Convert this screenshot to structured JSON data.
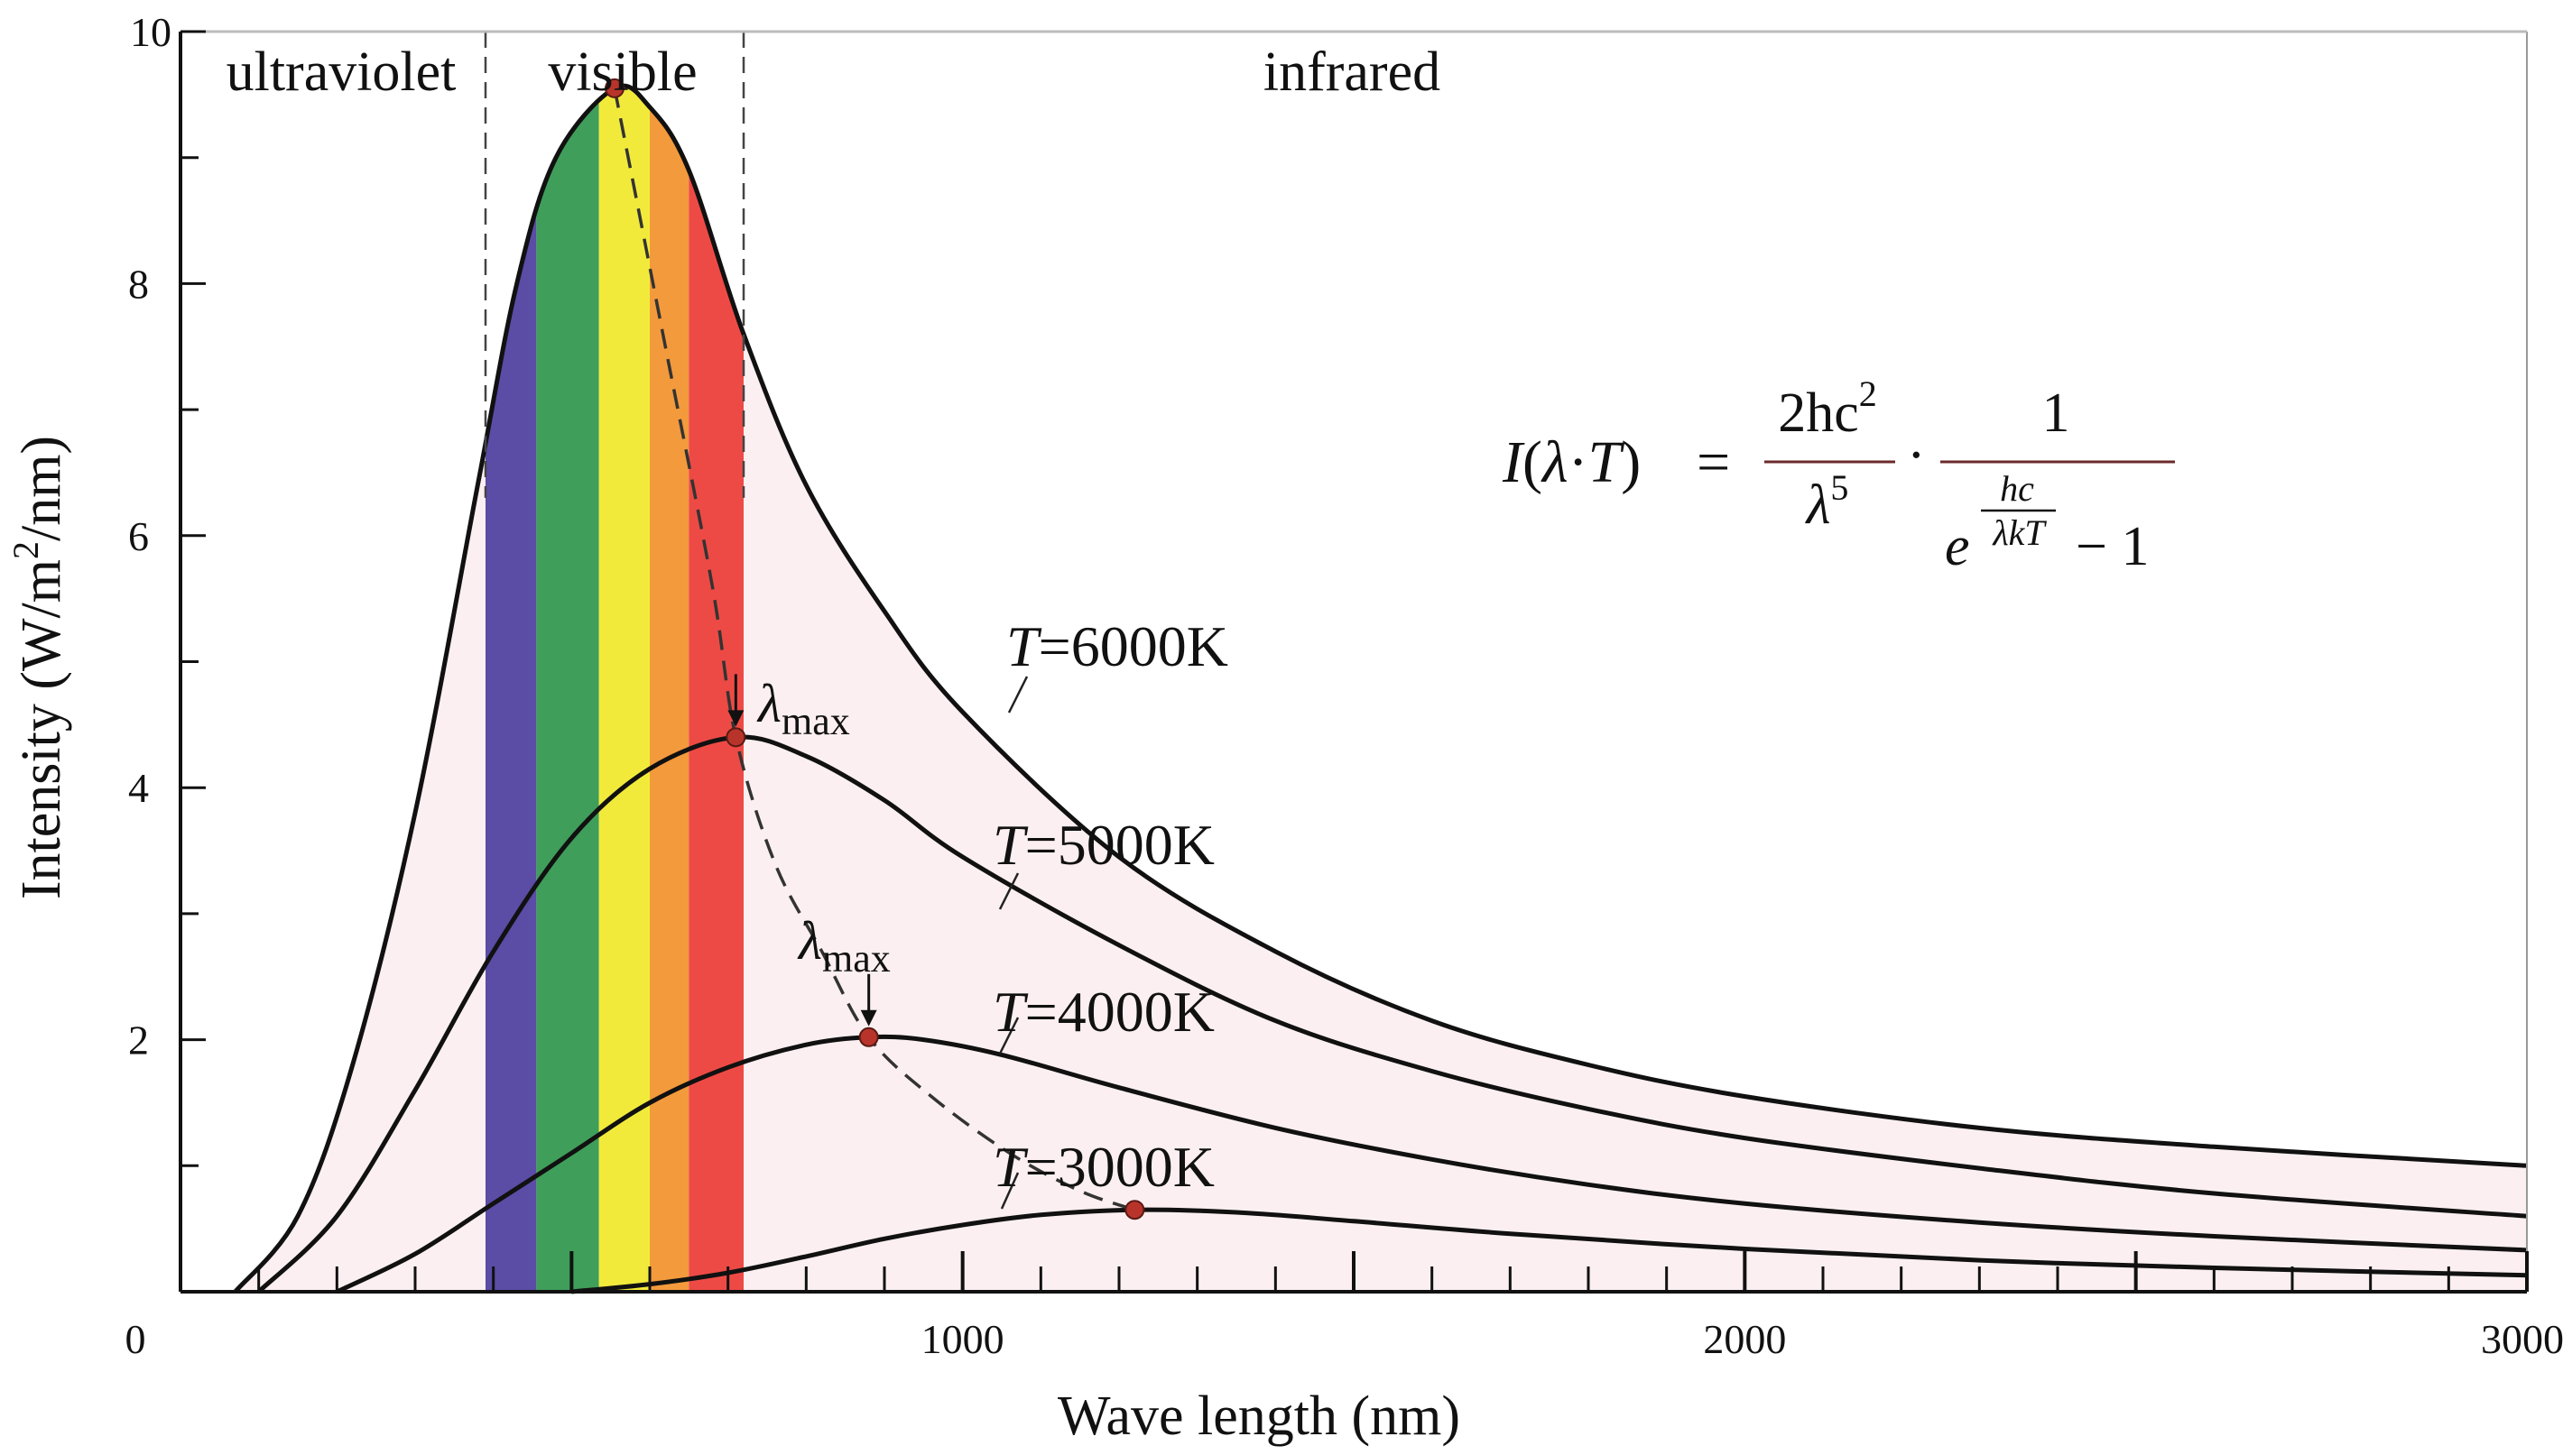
{
  "chart_data": {
    "type": "line",
    "xlabel": "Wave length (nm)",
    "ylabel_main": "Intensity (W/m",
    "ylabel_sup": "2",
    "ylabel_end": "/nm)",
    "xlim": [
      0,
      3000
    ],
    "ylim": [
      0,
      10
    ],
    "x_ticks": [
      {
        "value": 0,
        "label": "0"
      },
      {
        "value": 1000,
        "label": "1000"
      },
      {
        "value": 2000,
        "label": "2000"
      },
      {
        "value": 3000,
        "label": "3000"
      }
    ],
    "y_ticks": [
      {
        "value": 2,
        "label": "2"
      },
      {
        "value": 4,
        "label": "4"
      },
      {
        "value": 6,
        "label": "6"
      },
      {
        "value": 8,
        "label": "8"
      },
      {
        "value": 10,
        "label": "10"
      }
    ],
    "regions": [
      {
        "name": "ultraviolet",
        "label": "ultraviolet",
        "from": 0,
        "to": 390
      },
      {
        "name": "visible",
        "label": "visible",
        "from": 390,
        "to": 720
      },
      {
        "name": "infrared",
        "label": "infrared",
        "from": 720,
        "to": 3000
      }
    ],
    "spectrum_bands": [
      {
        "from": 390,
        "to": 455,
        "color": "#5b4ca6"
      },
      {
        "from": 455,
        "to": 535,
        "color": "#3f9e5a"
      },
      {
        "from": 535,
        "to": 600,
        "color": "#f2ea3b"
      },
      {
        "from": 600,
        "to": 650,
        "color": "#f39a3c"
      },
      {
        "from": 650,
        "to": 720,
        "color": "#ee4a45"
      }
    ],
    "series": [
      {
        "name": "T=6000K",
        "label_italic": "T",
        "label_rest": "=6000K",
        "temperature_K": 6000,
        "peak": {
          "x": 555,
          "y": 9.55
        },
        "points": [
          [
            70,
            0
          ],
          [
            150,
            0.6
          ],
          [
            220,
            1.8
          ],
          [
            300,
            3.8
          ],
          [
            380,
            6.4
          ],
          [
            430,
            8.0
          ],
          [
            480,
            9.0
          ],
          [
            555,
            9.55
          ],
          [
            600,
            9.4
          ],
          [
            650,
            8.9
          ],
          [
            720,
            7.6
          ],
          [
            800,
            6.4
          ],
          [
            900,
            5.4
          ],
          [
            1000,
            4.6
          ],
          [
            1200,
            3.45
          ],
          [
            1400,
            2.7
          ],
          [
            1600,
            2.15
          ],
          [
            1800,
            1.8
          ],
          [
            2000,
            1.55
          ],
          [
            2300,
            1.3
          ],
          [
            2600,
            1.15
          ],
          [
            3000,
            1.0
          ]
        ],
        "label_pos": {
          "x": 1060,
          "y": 5.2
        }
      },
      {
        "name": "T=5000K",
        "label_italic": "T",
        "label_rest": "=5000K",
        "temperature_K": 5000,
        "peak": {
          "x": 710,
          "y": 4.4
        },
        "points": [
          [
            100,
            0
          ],
          [
            200,
            0.6
          ],
          [
            300,
            1.6
          ],
          [
            400,
            2.7
          ],
          [
            500,
            3.6
          ],
          [
            600,
            4.15
          ],
          [
            710,
            4.4
          ],
          [
            800,
            4.25
          ],
          [
            900,
            3.9
          ],
          [
            1000,
            3.45
          ],
          [
            1200,
            2.75
          ],
          [
            1400,
            2.15
          ],
          [
            1600,
            1.75
          ],
          [
            1800,
            1.45
          ],
          [
            2000,
            1.22
          ],
          [
            2300,
            0.98
          ],
          [
            2600,
            0.78
          ],
          [
            3000,
            0.6
          ]
        ],
        "label_pos": {
          "x": 1040,
          "y": 3.55
        }
      },
      {
        "name": "T=4000K",
        "label_italic": "T",
        "label_rest": "=4000K",
        "temperature_K": 4000,
        "peak": {
          "x": 880,
          "y": 2.02
        },
        "points": [
          [
            200,
            0
          ],
          [
            300,
            0.3
          ],
          [
            400,
            0.7
          ],
          [
            500,
            1.1
          ],
          [
            600,
            1.5
          ],
          [
            700,
            1.78
          ],
          [
            800,
            1.96
          ],
          [
            880,
            2.02
          ],
          [
            950,
            2.0
          ],
          [
            1050,
            1.88
          ],
          [
            1200,
            1.62
          ],
          [
            1400,
            1.3
          ],
          [
            1600,
            1.05
          ],
          [
            1800,
            0.85
          ],
          [
            2000,
            0.7
          ],
          [
            2300,
            0.55
          ],
          [
            2600,
            0.44
          ],
          [
            3000,
            0.33
          ]
        ],
        "label_pos": {
          "x": 1040,
          "y": 2.2
        }
      },
      {
        "name": "T=3000K",
        "label_italic": "T",
        "label_rest": "=3000K",
        "temperature_K": 3000,
        "peak": {
          "x": 1220,
          "y": 0.65
        },
        "points": [
          [
            500,
            0
          ],
          [
            600,
            0.06
          ],
          [
            700,
            0.15
          ],
          [
            800,
            0.28
          ],
          [
            900,
            0.42
          ],
          [
            1000,
            0.53
          ],
          [
            1100,
            0.61
          ],
          [
            1220,
            0.65
          ],
          [
            1350,
            0.63
          ],
          [
            1500,
            0.56
          ],
          [
            1700,
            0.46
          ],
          [
            2000,
            0.34
          ],
          [
            2300,
            0.25
          ],
          [
            2600,
            0.19
          ],
          [
            3000,
            0.13
          ]
        ],
        "label_pos": {
          "x": 1040,
          "y": 0.95
        }
      }
    ],
    "lambda_max_labels": [
      {
        "label_base": "λ",
        "label_sub": "max",
        "x": 740,
        "y": 4.78,
        "arrow_to": {
          "x": 710,
          "y": 4.4
        }
      },
      {
        "label_base": "λ",
        "label_sub": "max",
        "x": 800,
        "y": 2.82,
        "arrow_to": {
          "x": 880,
          "y": 2.02
        }
      }
    ],
    "wien_curve_points": [
      [
        555,
        9.55
      ],
      [
        620,
        7.5
      ],
      [
        680,
        5.6
      ],
      [
        710,
        4.4
      ],
      [
        760,
        3.4
      ],
      [
        820,
        2.7
      ],
      [
        880,
        2.02
      ],
      [
        960,
        1.55
      ],
      [
        1060,
        1.1
      ],
      [
        1150,
        0.8
      ],
      [
        1220,
        0.65
      ]
    ],
    "formula": {
      "lhs_I": "I",
      "lhs_open": "(",
      "lhs_lambda": "λ",
      "lhs_sep": "·",
      "lhs_T": "T",
      "lhs_close": ")",
      "equals": "=",
      "frac1_num": "2hc",
      "frac1_num_sup": "2",
      "frac1_den": "λ",
      "frac1_den_sup": "5",
      "dot": "·",
      "frac2_num": "1",
      "frac2_den_base": "e",
      "exp_num": "hc",
      "exp_den": "λkT",
      "frac2_den_rest": "− 1"
    }
  }
}
